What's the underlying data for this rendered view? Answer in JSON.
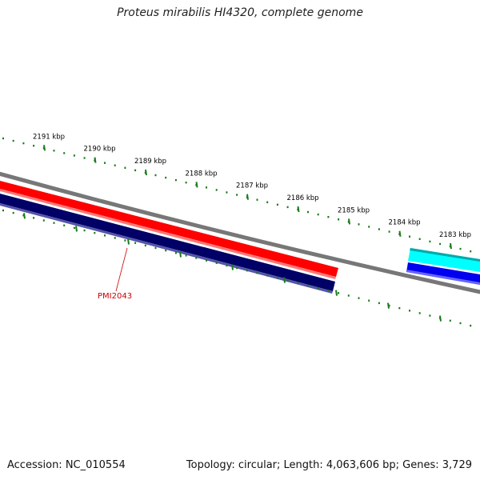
{
  "title": "Proteus mirabilis HI4320, complete genome",
  "footer": {
    "accession": "Accession: NC_010554",
    "summary": "Topology: circular; Length: 4,063,606 bp; Genes: 3,729"
  },
  "ruler": {
    "tick_labels": [
      "2191 kbp",
      "2190 kbp",
      "2189 kbp",
      "2188 kbp",
      "2187 kbp",
      "2186 kbp",
      "2185 kbp",
      "2184 kbp",
      "2183 kbp"
    ],
    "tick_color": "#1a7a1a"
  },
  "genes": [
    {
      "label": "PMI2043",
      "label_color": "#cc0000"
    }
  ],
  "colors": {
    "backbone": "#808080",
    "forward_cds": "#ff0000",
    "reverse_cds": "#000066",
    "forward_other": "#00e5e5",
    "reverse_other": "#0000ee"
  }
}
